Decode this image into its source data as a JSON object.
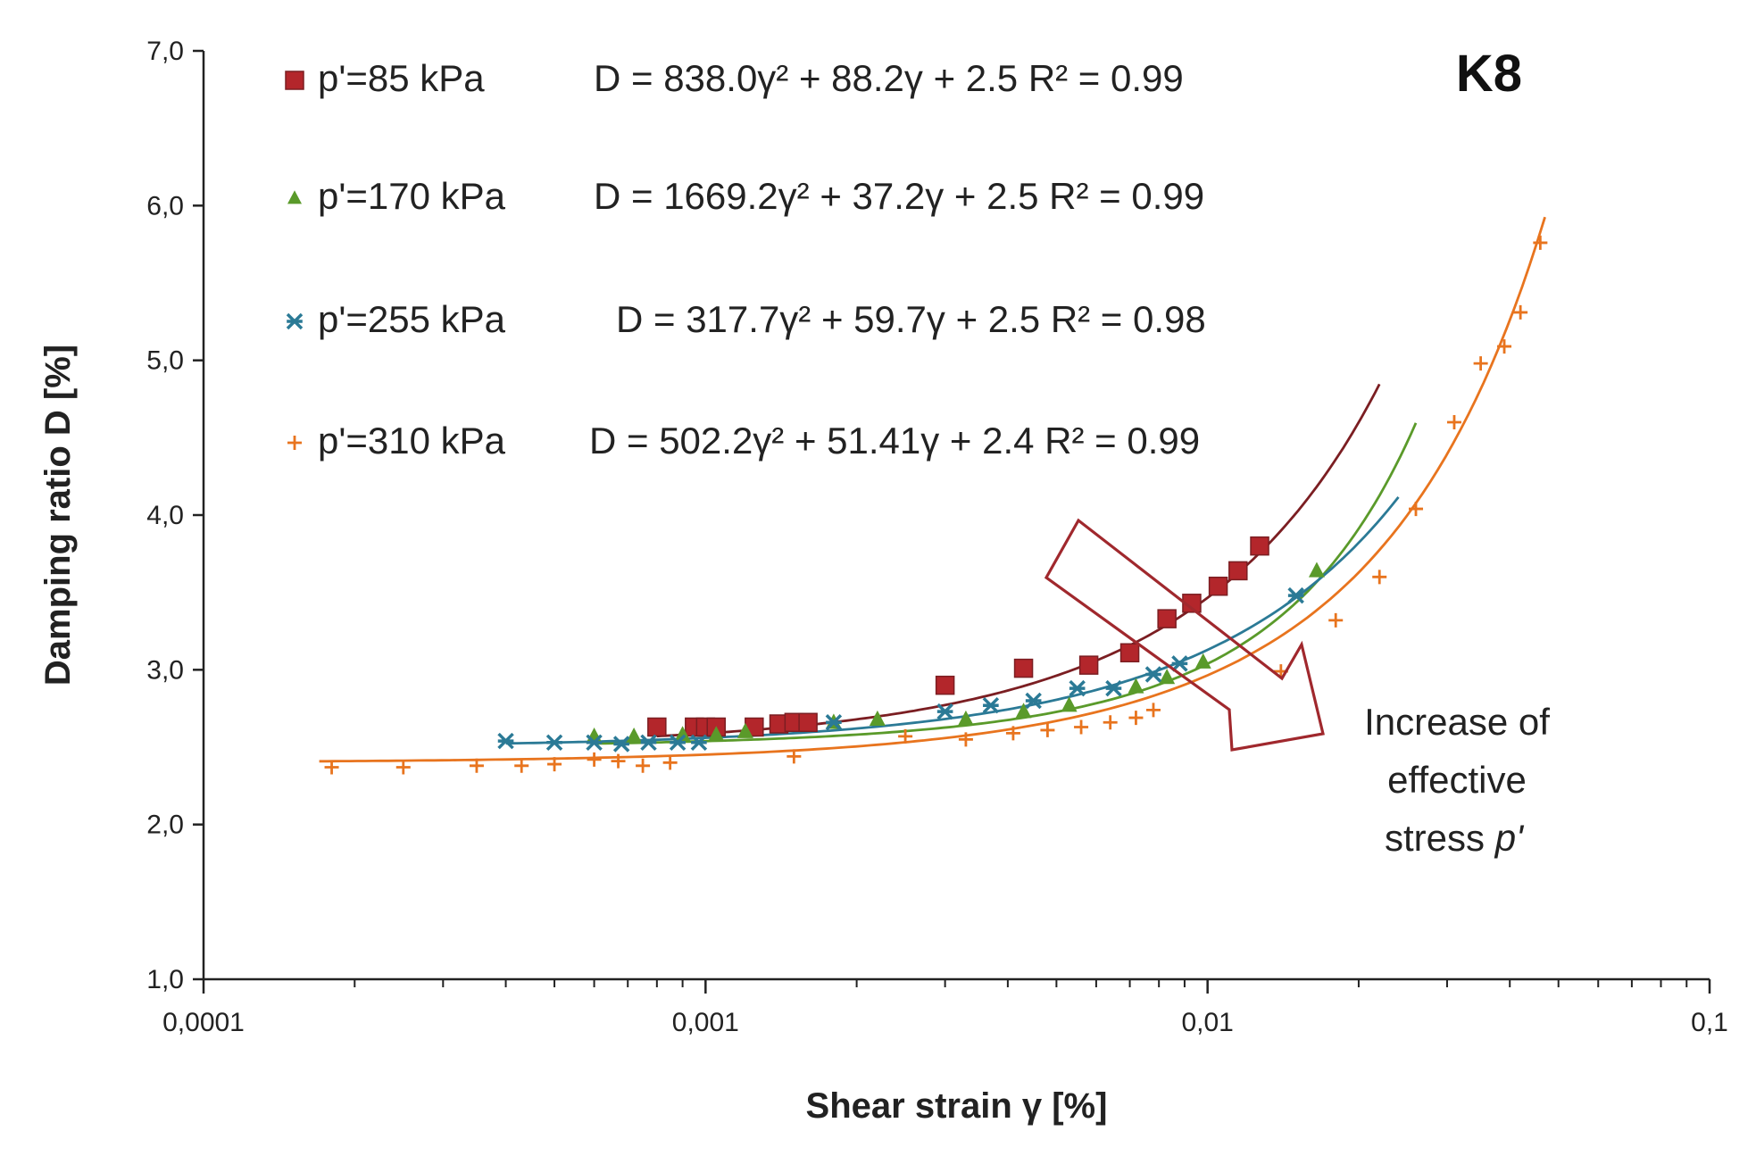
{
  "chart_data": {
    "type": "scatter",
    "panel_label": "K8",
    "xlabel": "Shear strain γ [%]",
    "ylabel": "Damping ratio D [%]",
    "x_scale": "log",
    "xlim": [
      0.0001,
      0.1
    ],
    "ylim": [
      1.0,
      7.0
    ],
    "x_ticks": [
      "0,0001",
      "0,001",
      "0,01",
      "0,1"
    ],
    "y_ticks": [
      "1,0",
      "2,0",
      "3,0",
      "4,0",
      "5,0",
      "6,0",
      "7,0"
    ],
    "grid": false,
    "legend_position": "top-left",
    "series": [
      {
        "name": "p'=85 kPa",
        "marker": "square",
        "marker_color": "#b3262b",
        "line_color": "#7b1e22",
        "equation": "D = 838.0γ² + 88.2γ + 2.5 R² = 0.99",
        "fit": {
          "a": 838.0,
          "b": 88.2,
          "c": 2.5
        },
        "fit_range": [
          0.0008,
          0.022
        ],
        "points": [
          [
            0.0008,
            2.63
          ],
          [
            0.00095,
            2.63
          ],
          [
            0.001,
            2.63
          ],
          [
            0.00105,
            2.63
          ],
          [
            0.00125,
            2.63
          ],
          [
            0.0014,
            2.65
          ],
          [
            0.0015,
            2.66
          ],
          [
            0.0016,
            2.66
          ],
          [
            0.003,
            2.9
          ],
          [
            0.0043,
            3.01
          ],
          [
            0.0058,
            3.03
          ],
          [
            0.007,
            3.11
          ],
          [
            0.0083,
            3.33
          ],
          [
            0.0093,
            3.43
          ],
          [
            0.0105,
            3.54
          ],
          [
            0.0115,
            3.64
          ],
          [
            0.0127,
            3.8
          ]
        ]
      },
      {
        "name": "p'=170 kPa",
        "marker": "triangle",
        "marker_color": "#5a9a2a",
        "line_color": "#5a9a2a",
        "equation": "D = 1669.2γ² + 37.2γ + 2.5 R² = 0.99",
        "fit": {
          "a": 1669.2,
          "b": 37.2,
          "c": 2.5
        },
        "fit_range": [
          0.0006,
          0.026
        ],
        "points": [
          [
            0.0006,
            2.57
          ],
          [
            0.00072,
            2.57
          ],
          [
            0.0009,
            2.58
          ],
          [
            0.00105,
            2.58
          ],
          [
            0.0012,
            2.6
          ],
          [
            0.0018,
            2.66
          ],
          [
            0.0022,
            2.68
          ],
          [
            0.0033,
            2.68
          ],
          [
            0.0043,
            2.73
          ],
          [
            0.0053,
            2.77
          ],
          [
            0.0072,
            2.89
          ],
          [
            0.0083,
            2.95
          ],
          [
            0.0098,
            3.05
          ],
          [
            0.0165,
            3.64
          ]
        ]
      },
      {
        "name": "p'=255 kPa",
        "marker": "asterisk",
        "marker_color": "#2b7a96",
        "line_color": "#2b7a96",
        "equation": "D = 317.7γ² + 59.7γ + 2.5 R² = 0.98",
        "fit": {
          "a": 317.7,
          "b": 59.7,
          "c": 2.5
        },
        "fit_range": [
          0.0004,
          0.024
        ],
        "points": [
          [
            0.0004,
            2.54
          ],
          [
            0.0005,
            2.53
          ],
          [
            0.0006,
            2.53
          ],
          [
            0.00068,
            2.52
          ],
          [
            0.00077,
            2.53
          ],
          [
            0.00088,
            2.53
          ],
          [
            0.00097,
            2.53
          ],
          [
            0.0018,
            2.66
          ],
          [
            0.003,
            2.73
          ],
          [
            0.0037,
            2.77
          ],
          [
            0.0045,
            2.8
          ],
          [
            0.0055,
            2.88
          ],
          [
            0.0065,
            2.88
          ],
          [
            0.0078,
            2.97
          ],
          [
            0.0088,
            3.04
          ],
          [
            0.015,
            3.48
          ]
        ]
      },
      {
        "name": "p'=310 kPa",
        "marker": "plus",
        "marker_color": "#e8741e",
        "line_color": "#e8741e",
        "equation": "D = 502.2γ² + 51.41γ + 2.4 R² = 0.99",
        "fit": {
          "a": 502.2,
          "b": 51.41,
          "c": 2.4
        },
        "fit_range": [
          0.00017,
          0.047
        ],
        "points": [
          [
            0.00018,
            2.37
          ],
          [
            0.00025,
            2.37
          ],
          [
            0.00035,
            2.38
          ],
          [
            0.00043,
            2.38
          ],
          [
            0.0005,
            2.39
          ],
          [
            0.0006,
            2.42
          ],
          [
            0.00067,
            2.41
          ],
          [
            0.00075,
            2.38
          ],
          [
            0.00085,
            2.4
          ],
          [
            0.0015,
            2.44
          ],
          [
            0.0025,
            2.57
          ],
          [
            0.0033,
            2.55
          ],
          [
            0.0041,
            2.59
          ],
          [
            0.0048,
            2.61
          ],
          [
            0.0056,
            2.63
          ],
          [
            0.0064,
            2.66
          ],
          [
            0.0072,
            2.69
          ],
          [
            0.0078,
            2.74
          ],
          [
            0.014,
            2.99
          ],
          [
            0.018,
            3.32
          ],
          [
            0.022,
            3.6
          ],
          [
            0.026,
            4.04
          ],
          [
            0.031,
            4.6
          ],
          [
            0.035,
            4.98
          ],
          [
            0.039,
            5.09
          ],
          [
            0.042,
            5.31
          ],
          [
            0.046,
            5.76
          ]
        ]
      }
    ],
    "annotation": {
      "lines": [
        "Increase of",
        "effective",
        "stress "
      ],
      "italic_symbol": "p'",
      "arrow_color": "#a0282d",
      "arrow_direction": "down-right"
    }
  }
}
